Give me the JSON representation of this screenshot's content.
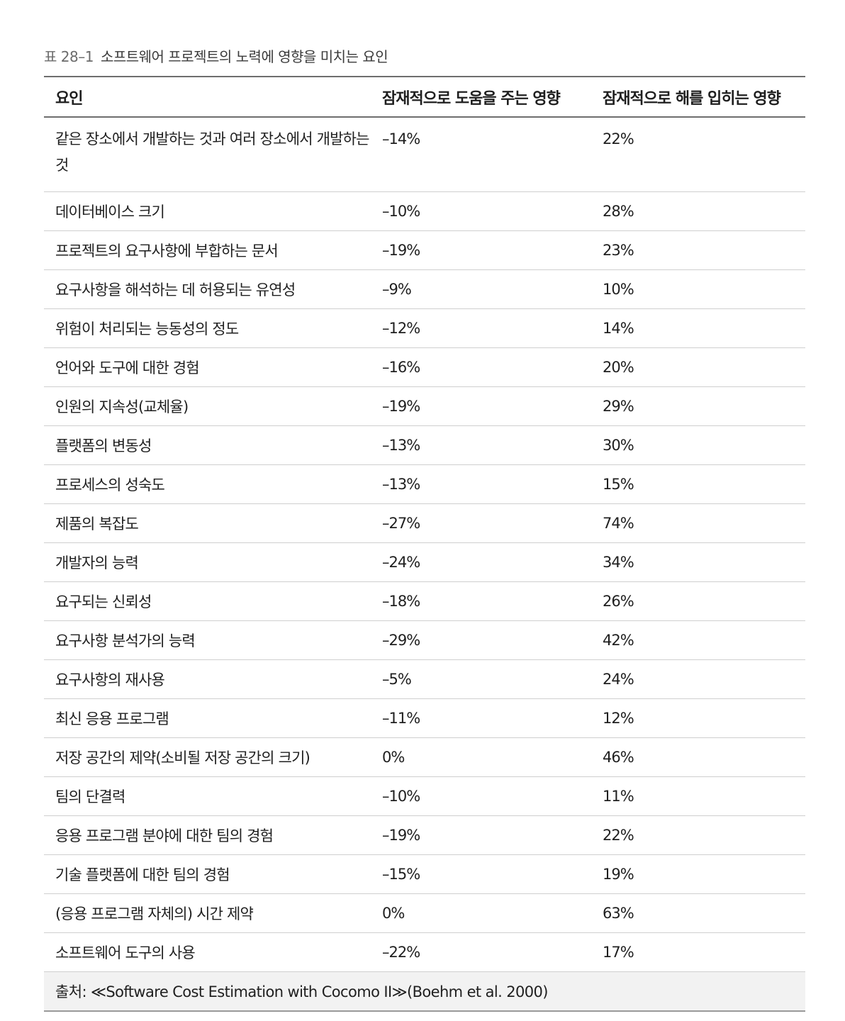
{
  "caption": {
    "number": "표 28–1",
    "title": "소프트웨어 프로젝트의 노력에 영향을 미치는 요인"
  },
  "table": {
    "headers": [
      "요인",
      "잠재적으로 도움을 주는 영향",
      "잠재적으로 해를 입히는 영향"
    ],
    "rows": [
      {
        "factor": "같은 장소에서 개발하는 것과 여러 장소에서 개발하는 것",
        "helps": "–14%",
        "hurts": "22%"
      },
      {
        "factor": "데이터베이스 크기",
        "helps": "–10%",
        "hurts": "28%"
      },
      {
        "factor": "프로젝트의 요구사항에 부합하는 문서",
        "helps": "–19%",
        "hurts": "23%"
      },
      {
        "factor": "요구사항을 해석하는 데 허용되는 유연성",
        "helps": "–9%",
        "hurts": "10%"
      },
      {
        "factor": "위험이 처리되는 능동성의 정도",
        "helps": "–12%",
        "hurts": "14%"
      },
      {
        "factor": "언어와 도구에 대한 경험",
        "helps": "–16%",
        "hurts": "20%"
      },
      {
        "factor": "인원의 지속성(교체율)",
        "helps": "–19%",
        "hurts": "29%"
      },
      {
        "factor": "플랫폼의 변동성",
        "helps": "–13%",
        "hurts": "30%"
      },
      {
        "factor": "프로세스의 성숙도",
        "helps": "–13%",
        "hurts": "15%"
      },
      {
        "factor": "제품의 복잡도",
        "helps": "–27%",
        "hurts": "74%"
      },
      {
        "factor": "개발자의 능력",
        "helps": "–24%",
        "hurts": "34%"
      },
      {
        "factor": "요구되는 신뢰성",
        "helps": "–18%",
        "hurts": "26%"
      },
      {
        "factor": "요구사항 분석가의 능력",
        "helps": "–29%",
        "hurts": "42%"
      },
      {
        "factor": "요구사항의 재사용",
        "helps": "–5%",
        "hurts": "24%"
      },
      {
        "factor": "최신 응용 프로그램",
        "helps": "–11%",
        "hurts": "12%"
      },
      {
        "factor": "저장 공간의 제약(소비될 저장 공간의 크기)",
        "helps": "0%",
        "hurts": "46%"
      },
      {
        "factor": "팀의 단결력",
        "helps": "–10%",
        "hurts": "11%"
      },
      {
        "factor": "응용 프로그램 분야에 대한 팀의 경험",
        "helps": "–19%",
        "hurts": "22%"
      },
      {
        "factor": "기술 플랫폼에 대한 팀의 경험",
        "helps": "–15%",
        "hurts": "19%"
      },
      {
        "factor": "(응용 프로그램 자체의) 시간 제약",
        "helps": "0%",
        "hurts": "63%"
      },
      {
        "factor": "소프트웨어 도구의 사용",
        "helps": "–22%",
        "hurts": "17%"
      }
    ],
    "source": "출처: ≪Software Cost Estimation with Cocomo II≫(Boehm et al. 2000)"
  }
}
